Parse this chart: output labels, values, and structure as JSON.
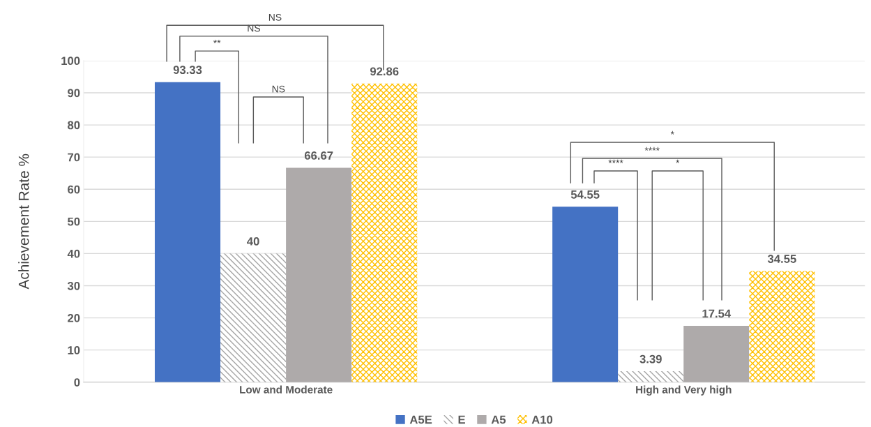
{
  "chart_data": {
    "type": "bar",
    "ylabel": "Achievement Rate %",
    "categories": [
      "Low and Moderate",
      "High and Very high"
    ],
    "series": [
      {
        "name": "A5E",
        "color": "#4472c4",
        "values": [
          93.33,
          54.55
        ]
      },
      {
        "name": "E",
        "color": "#a5a5a5",
        "values": [
          40,
          3.39
        ]
      },
      {
        "name": "A5",
        "color": "#aeaaaa",
        "values": [
          66.67,
          17.54
        ]
      },
      {
        "name": "A10",
        "color": "#ffc000",
        "values": [
          92.86,
          34.55
        ]
      }
    ],
    "ylim": [
      0,
      100
    ],
    "yticks": [
      0,
      10,
      20,
      30,
      40,
      50,
      60,
      70,
      80,
      90,
      100
    ],
    "grid": "y",
    "legend": "bottom",
    "data_labels": true,
    "annotations": [
      "NS",
      "NS",
      "**",
      "NS",
      "*",
      "****",
      "****",
      "*"
    ]
  }
}
